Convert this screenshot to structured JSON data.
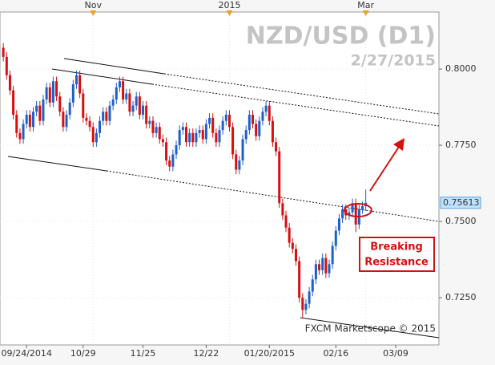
{
  "chart_data": {
    "type": "candlestick",
    "title": "NZD/USD (D1)",
    "subtitle": "2/27/2015",
    "watermark": "FXCM Marketscope © 2015",
    "annotation_lines": [
      "Breaking",
      "Resistance"
    ],
    "up_color": "#1f5fc8",
    "down_color": "#d41010",
    "xlim": [
      -1,
      131
    ],
    "ylim": [
      0.7095,
      0.8187
    ],
    "yticks": [
      {
        "value": 0.725,
        "label": "0.7250"
      },
      {
        "value": 0.75,
        "label": "0.7500"
      },
      {
        "value": 0.775,
        "label": "0.7750"
      },
      {
        "value": 0.8,
        "label": "0.8000"
      }
    ],
    "xticks": [
      {
        "value": 7,
        "label": "09/24/2014"
      },
      {
        "value": 24,
        "label": "10/29"
      },
      {
        "value": 42,
        "label": "11/25"
      },
      {
        "value": 61,
        "label": "12/22"
      },
      {
        "value": 80,
        "label": "01/20/2015"
      },
      {
        "value": 100,
        "label": "02/16"
      },
      {
        "value": 118,
        "label": "03/09"
      }
    ],
    "top_xticks": [
      {
        "value": 27,
        "label": "Nov"
      },
      {
        "value": 68,
        "label": "2015"
      },
      {
        "value": 109,
        "label": "Mar"
      }
    ],
    "last_price": 0.75613,
    "candles": [
      [
        0.807,
        0.8085,
        0.8025,
        0.804
      ],
      [
        0.804,
        0.8055,
        0.7965,
        0.798
      ],
      [
        0.798,
        0.7995,
        0.7915,
        0.793
      ],
      [
        0.793,
        0.7945,
        0.7835,
        0.785
      ],
      [
        0.785,
        0.7865,
        0.7775,
        0.779
      ],
      [
        0.779,
        0.7805,
        0.7755,
        0.777
      ],
      [
        0.777,
        0.7835,
        0.7755,
        0.782
      ],
      [
        0.782,
        0.7865,
        0.7805,
        0.785
      ],
      [
        0.785,
        0.7865,
        0.7795,
        0.781
      ],
      [
        0.781,
        0.7875,
        0.7795,
        0.786
      ],
      [
        0.786,
        0.7895,
        0.7845,
        0.788
      ],
      [
        0.788,
        0.7895,
        0.7815,
        0.783
      ],
      [
        0.783,
        0.7915,
        0.7815,
        0.79
      ],
      [
        0.79,
        0.7955,
        0.7885,
        0.794
      ],
      [
        0.794,
        0.7955,
        0.7875,
        0.789
      ],
      [
        0.789,
        0.7975,
        0.7875,
        0.796
      ],
      [
        0.796,
        0.7975,
        0.7895,
        0.791
      ],
      [
        0.791,
        0.7925,
        0.7845,
        0.786
      ],
      [
        0.786,
        0.7875,
        0.7795,
        0.781
      ],
      [
        0.781,
        0.7865,
        0.7795,
        0.785
      ],
      [
        0.785,
        0.7905,
        0.7835,
        0.789
      ],
      [
        0.789,
        0.7965,
        0.7875,
        0.795
      ],
      [
        0.795,
        0.7995,
        0.7935,
        0.798
      ],
      [
        0.798,
        0.7995,
        0.7905,
        0.792
      ],
      [
        0.792,
        0.7935,
        0.7825,
        0.784
      ],
      [
        0.784,
        0.7855,
        0.7815,
        0.783
      ],
      [
        0.783,
        0.7845,
        0.7795,
        0.781
      ],
      [
        0.781,
        0.7825,
        0.7745,
        0.776
      ],
      [
        0.776,
        0.7805,
        0.7745,
        0.779
      ],
      [
        0.779,
        0.7845,
        0.7775,
        0.783
      ],
      [
        0.783,
        0.7875,
        0.7815,
        0.786
      ],
      [
        0.786,
        0.7875,
        0.7815,
        0.783
      ],
      [
        0.783,
        0.7895,
        0.7815,
        0.788
      ],
      [
        0.788,
        0.7915,
        0.7865,
        0.79
      ],
      [
        0.79,
        0.7955,
        0.7885,
        0.794
      ],
      [
        0.794,
        0.7975,
        0.7925,
        0.796
      ],
      [
        0.796,
        0.7975,
        0.7885,
        0.79
      ],
      [
        0.79,
        0.7935,
        0.7885,
        0.792
      ],
      [
        0.792,
        0.7935,
        0.7845,
        0.786
      ],
      [
        0.786,
        0.7895,
        0.7845,
        0.788
      ],
      [
        0.788,
        0.7925,
        0.7865,
        0.791
      ],
      [
        0.791,
        0.7925,
        0.7835,
        0.785
      ],
      [
        0.785,
        0.7895,
        0.7835,
        0.788
      ],
      [
        0.788,
        0.7895,
        0.7805,
        0.782
      ],
      [
        0.782,
        0.7845,
        0.7805,
        0.783
      ],
      [
        0.783,
        0.7845,
        0.7775,
        0.779
      ],
      [
        0.779,
        0.7825,
        0.7775,
        0.781
      ],
      [
        0.781,
        0.7825,
        0.7755,
        0.777
      ],
      [
        0.777,
        0.7785,
        0.7745,
        0.776
      ],
      [
        0.776,
        0.7775,
        0.7685,
        0.77
      ],
      [
        0.77,
        0.7715,
        0.7665,
        0.768
      ],
      [
        0.768,
        0.7735,
        0.7665,
        0.772
      ],
      [
        0.772,
        0.7765,
        0.7705,
        0.775
      ],
      [
        0.775,
        0.7815,
        0.7735,
        0.78
      ],
      [
        0.78,
        0.7825,
        0.7785,
        0.781
      ],
      [
        0.781,
        0.7825,
        0.7745,
        0.776
      ],
      [
        0.776,
        0.7805,
        0.7745,
        0.779
      ],
      [
        0.779,
        0.7805,
        0.7745,
        0.776
      ],
      [
        0.776,
        0.7805,
        0.7745,
        0.779
      ],
      [
        0.779,
        0.7815,
        0.7775,
        0.78
      ],
      [
        0.78,
        0.7815,
        0.7755,
        0.777
      ],
      [
        0.777,
        0.7835,
        0.7755,
        0.782
      ],
      [
        0.782,
        0.7855,
        0.7805,
        0.784
      ],
      [
        0.784,
        0.7855,
        0.7775,
        0.779
      ],
      [
        0.779,
        0.7805,
        0.7745,
        0.776
      ],
      [
        0.776,
        0.7815,
        0.7745,
        0.78
      ],
      [
        0.78,
        0.7845,
        0.7785,
        0.783
      ],
      [
        0.783,
        0.7865,
        0.7815,
        0.785
      ],
      [
        0.785,
        0.7865,
        0.7795,
        0.781
      ],
      [
        0.781,
        0.7825,
        0.7705,
        0.772
      ],
      [
        0.772,
        0.7735,
        0.7655,
        0.767
      ],
      [
        0.767,
        0.7715,
        0.7655,
        0.77
      ],
      [
        0.77,
        0.7785,
        0.7685,
        0.777
      ],
      [
        0.777,
        0.7815,
        0.7755,
        0.78
      ],
      [
        0.78,
        0.7865,
        0.7785,
        0.785
      ],
      [
        0.785,
        0.7865,
        0.7805,
        0.782
      ],
      [
        0.782,
        0.7835,
        0.7765,
        0.778
      ],
      [
        0.778,
        0.7845,
        0.7765,
        0.783
      ],
      [
        0.783,
        0.7875,
        0.7815,
        0.786
      ],
      [
        0.786,
        0.7895,
        0.7845,
        0.788
      ],
      [
        0.788,
        0.7895,
        0.7815,
        0.783
      ],
      [
        0.783,
        0.7845,
        0.7745,
        0.776
      ],
      [
        0.776,
        0.7775,
        0.7715,
        0.773
      ],
      [
        0.773,
        0.7745,
        0.7545,
        0.756
      ],
      [
        0.756,
        0.7575,
        0.7505,
        0.752
      ],
      [
        0.752,
        0.7535,
        0.7465,
        0.748
      ],
      [
        0.748,
        0.7495,
        0.7415,
        0.743
      ],
      [
        0.743,
        0.7445,
        0.7395,
        0.741
      ],
      [
        0.741,
        0.7425,
        0.7355,
        0.737
      ],
      [
        0.737,
        0.7385,
        0.7235,
        0.725
      ],
      [
        0.725,
        0.7265,
        0.7185,
        0.721
      ],
      [
        0.721,
        0.7245,
        0.7195,
        0.723
      ],
      [
        0.723,
        0.7285,
        0.7215,
        0.727
      ],
      [
        0.727,
        0.7325,
        0.7255,
        0.731
      ],
      [
        0.731,
        0.7375,
        0.7295,
        0.736
      ],
      [
        0.736,
        0.7375,
        0.7325,
        0.734
      ],
      [
        0.734,
        0.7395,
        0.7325,
        0.738
      ],
      [
        0.738,
        0.7395,
        0.7315,
        0.733
      ],
      [
        0.733,
        0.7375,
        0.7315,
        0.736
      ],
      [
        0.736,
        0.7435,
        0.7345,
        0.742
      ],
      [
        0.742,
        0.7485,
        0.7405,
        0.747
      ],
      [
        0.747,
        0.7525,
        0.7455,
        0.751
      ],
      [
        0.751,
        0.7555,
        0.7495,
        0.754
      ],
      [
        0.754,
        0.7555,
        0.7505,
        0.752
      ],
      [
        0.752,
        0.7545,
        0.7505,
        0.753
      ],
      [
        0.753,
        0.7575,
        0.7515,
        0.756
      ],
      [
        0.756,
        0.7575,
        0.7465,
        0.749
      ],
      [
        0.749,
        0.7555,
        0.7475,
        0.754
      ],
      [
        0.754,
        0.7565,
        0.7525,
        0.755
      ],
      [
        0.755,
        0.7605,
        0.7535,
        0.75613
      ]
    ]
  }
}
